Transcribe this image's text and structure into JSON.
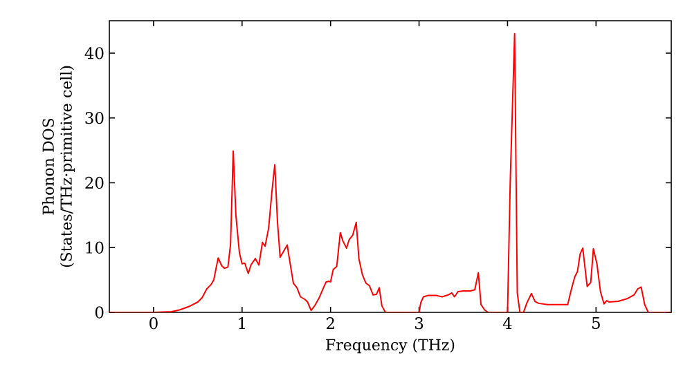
{
  "chart_data": {
    "type": "line",
    "xlabel": "Frequency (THz)",
    "ylabel": "Phonon DOS (States/THz·primitive cell)",
    "xlim": [
      -0.5,
      5.85
    ],
    "ylim": [
      0,
      45
    ],
    "xticks": [
      0,
      1,
      2,
      3,
      4,
      5
    ],
    "yticks": [
      0,
      10,
      20,
      30,
      40
    ],
    "grid": false,
    "marker": "none",
    "line_style": "solid",
    "x": [
      -0.5,
      0,
      0.2,
      0.3,
      0.4,
      0.5,
      0.55,
      0.6,
      0.65,
      0.68,
      0.73,
      0.77,
      0.8,
      0.84,
      0.87,
      0.9,
      0.93,
      0.97,
      1.0,
      1.03,
      1.07,
      1.1,
      1.15,
      1.19,
      1.23,
      1.26,
      1.3,
      1.34,
      1.37,
      1.4,
      1.43,
      1.46,
      1.51,
      1.54,
      1.58,
      1.62,
      1.66,
      1.71,
      1.74,
      1.78,
      1.82,
      1.87,
      1.92,
      1.95,
      1.98,
      2.0,
      2.03,
      2.07,
      2.11,
      2.14,
      2.18,
      2.21,
      2.25,
      2.29,
      2.32,
      2.36,
      2.4,
      2.44,
      2.48,
      2.52,
      2.55,
      2.58,
      2.62,
      3.0,
      3.02,
      3.05,
      3.1,
      3.2,
      3.26,
      3.33,
      3.37,
      3.4,
      3.44,
      3.5,
      3.58,
      3.63,
      3.67,
      3.7,
      3.74,
      3.78,
      4.0,
      4.03,
      4.08,
      4.11,
      4.14,
      4.18,
      4.22,
      4.27,
      4.31,
      4.35,
      4.45,
      4.6,
      4.68,
      4.72,
      4.76,
      4.79,
      4.82,
      4.85,
      4.9,
      4.94,
      4.97,
      5.01,
      5.05,
      5.09,
      5.12,
      5.15,
      5.25,
      5.35,
      5.43,
      5.47,
      5.51,
      5.55,
      5.59,
      5.85
    ],
    "series": [
      {
        "color": "#ff0000",
        "values": [
          0,
          0,
          0.1,
          0.4,
          0.9,
          1.6,
          2.3,
          3.6,
          4.3,
          5,
          8.4,
          7.2,
          6.8,
          7,
          10.5,
          24.9,
          15,
          9.2,
          7.5,
          7.6,
          6,
          7.3,
          8.3,
          7.3,
          10.8,
          10.2,
          13,
          19,
          22.8,
          14,
          8.5,
          9.2,
          10.4,
          7.8,
          4.5,
          3.8,
          2.4,
          2,
          1.6,
          0.3,
          1.0,
          2.2,
          3.8,
          4.7,
          4.8,
          4.7,
          6.6,
          7.1,
          12.3,
          11,
          9.9,
          11.2,
          11.9,
          13.9,
          8.3,
          5.8,
          4.5,
          4.1,
          2.7,
          2.8,
          3.8,
          1,
          0,
          0,
          1.5,
          2.4,
          2.6,
          2.6,
          2.4,
          2.7,
          3.0,
          2.4,
          3.2,
          3.3,
          3.3,
          3.5,
          6.1,
          1.2,
          0.4,
          0,
          0,
          20,
          43,
          3.0,
          0,
          0,
          1.5,
          2.9,
          1.7,
          1.4,
          1.2,
          1.2,
          1.2,
          3.5,
          5.5,
          6.3,
          9,
          9.9,
          4,
          4.6,
          9.8,
          7.5,
          3.2,
          1.3,
          1.8,
          1.6,
          1.7,
          2.1,
          2.7,
          3.6,
          3.9,
          1.2,
          0,
          0
        ]
      }
    ]
  }
}
